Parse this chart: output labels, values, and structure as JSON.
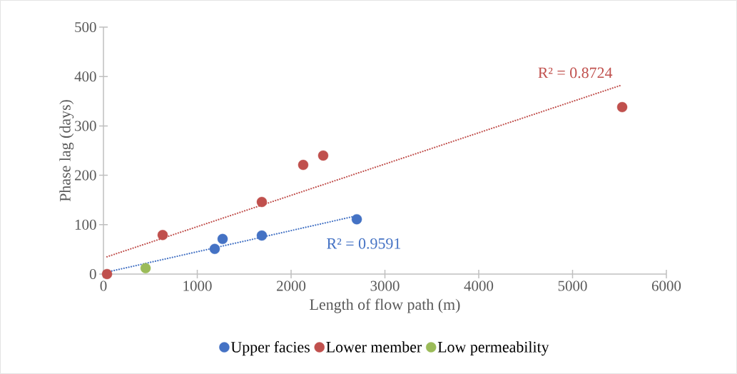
{
  "chart_data": {
    "type": "scatter",
    "xlabel": "Length of flow path (m)",
    "ylabel": "Phase lag (days)",
    "xlim": [
      0,
      6000
    ],
    "xticks": [
      0,
      1000,
      2000,
      3000,
      4000,
      5000,
      6000
    ],
    "ylim": [
      0,
      500
    ],
    "yticks": [
      0,
      100,
      200,
      300,
      400,
      500
    ],
    "grid": false,
    "legend": "bottom",
    "marker": "circle",
    "series": [
      {
        "name": "Upper facies",
        "color": "#4472c4",
        "x": [
          1186,
          1270,
          1688,
          2700
        ],
        "values": [
          51,
          71,
          78,
          111
        ]
      },
      {
        "name": "Lower member",
        "color": "#c0504d",
        "x": [
          38,
          631,
          1688,
          2129,
          2342,
          5529
        ],
        "values": [
          0,
          79,
          146,
          221,
          240,
          338
        ]
      },
      {
        "name": "Low permeability",
        "color": "#9bbb59",
        "x": [
          449
        ],
        "values": [
          12
        ]
      },
      {
        "type": "line",
        "color": "#c0504d",
        "line_style": "dotted",
        "marker": "none",
        "x": [
          38,
          5529
        ],
        "values": [
          35,
          383
        ]
      },
      {
        "type": "line",
        "color": "#4472c4",
        "line_style": "dotted",
        "marker": "none",
        "x": [
          38,
          2700
        ],
        "values": [
          4,
          118
        ]
      }
    ],
    "annotations": [
      "R² = 0.8724",
      "R² = 0.9591"
    ]
  }
}
